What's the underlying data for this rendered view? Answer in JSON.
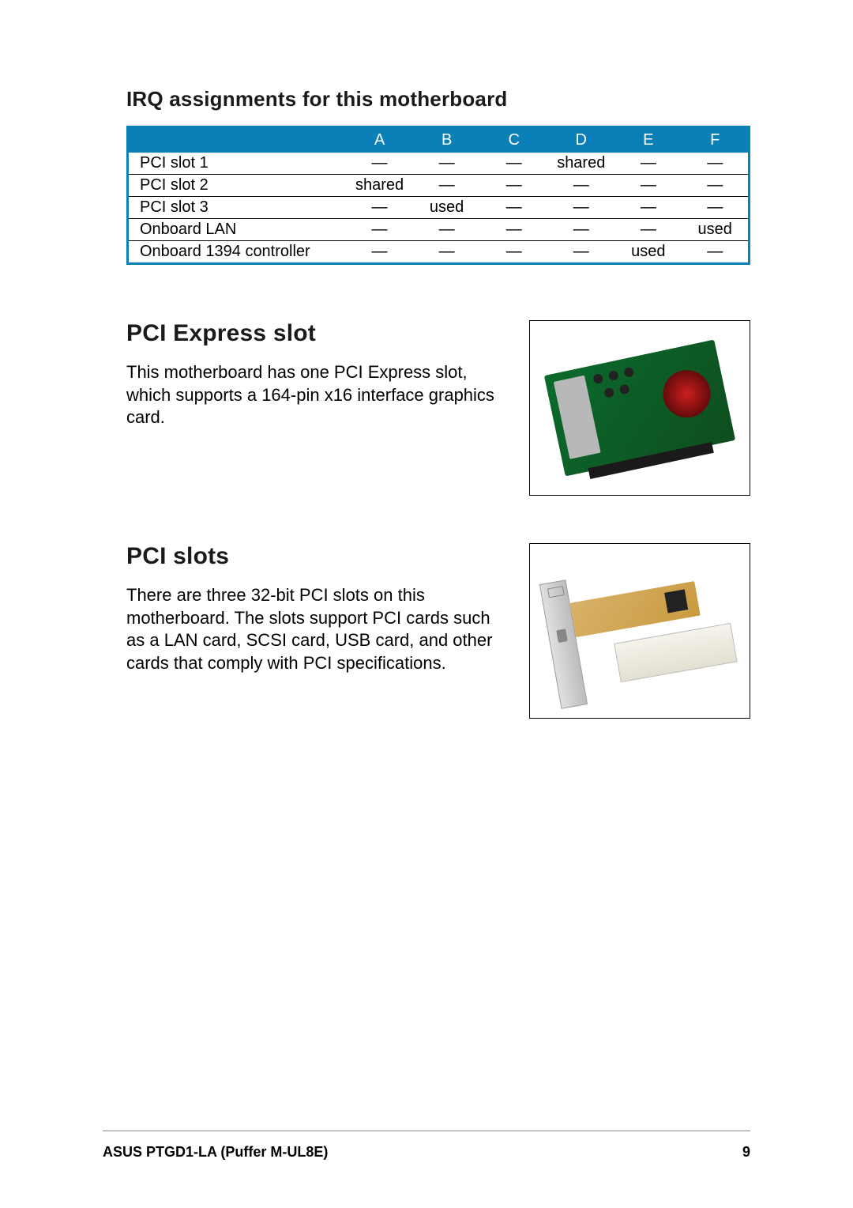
{
  "irq": {
    "title": "IRQ assignments for this motherboard",
    "columns": [
      "A",
      "B",
      "C",
      "D",
      "E",
      "F"
    ],
    "rows": [
      {
        "label": "PCI slot 1",
        "cells": [
          "—",
          "—",
          "—",
          "shared",
          "—",
          "—"
        ]
      },
      {
        "label": "PCI slot 2",
        "cells": [
          "shared",
          "—",
          "—",
          "—",
          "—",
          "—"
        ]
      },
      {
        "label": "PCI slot 3",
        "cells": [
          "—",
          "used",
          "—",
          "—",
          "—",
          "—"
        ]
      },
      {
        "label": "Onboard LAN",
        "cells": [
          "—",
          "—",
          "—",
          "—",
          "—",
          "used"
        ]
      },
      {
        "label": "Onboard 1394 controller",
        "cells": [
          "—",
          "—",
          "—",
          "—",
          "used",
          "—"
        ]
      }
    ],
    "header_bg": "#0a7fb8",
    "border_color": "#0a7fb8"
  },
  "express": {
    "title": "PCI Express slot",
    "body": "This motherboard has one PCI Express slot, which supports a 164-pin x16 interface graphics card."
  },
  "pci": {
    "title": "PCI slots",
    "body": "There are three 32-bit PCI slots on this motherboard. The slots support PCI cards such as a LAN card, SCSI card, USB card, and other cards that comply with PCI specifications."
  },
  "footer": {
    "left": "ASUS PTGD1-LA (Puffer M-UL8E)",
    "page": "9"
  }
}
